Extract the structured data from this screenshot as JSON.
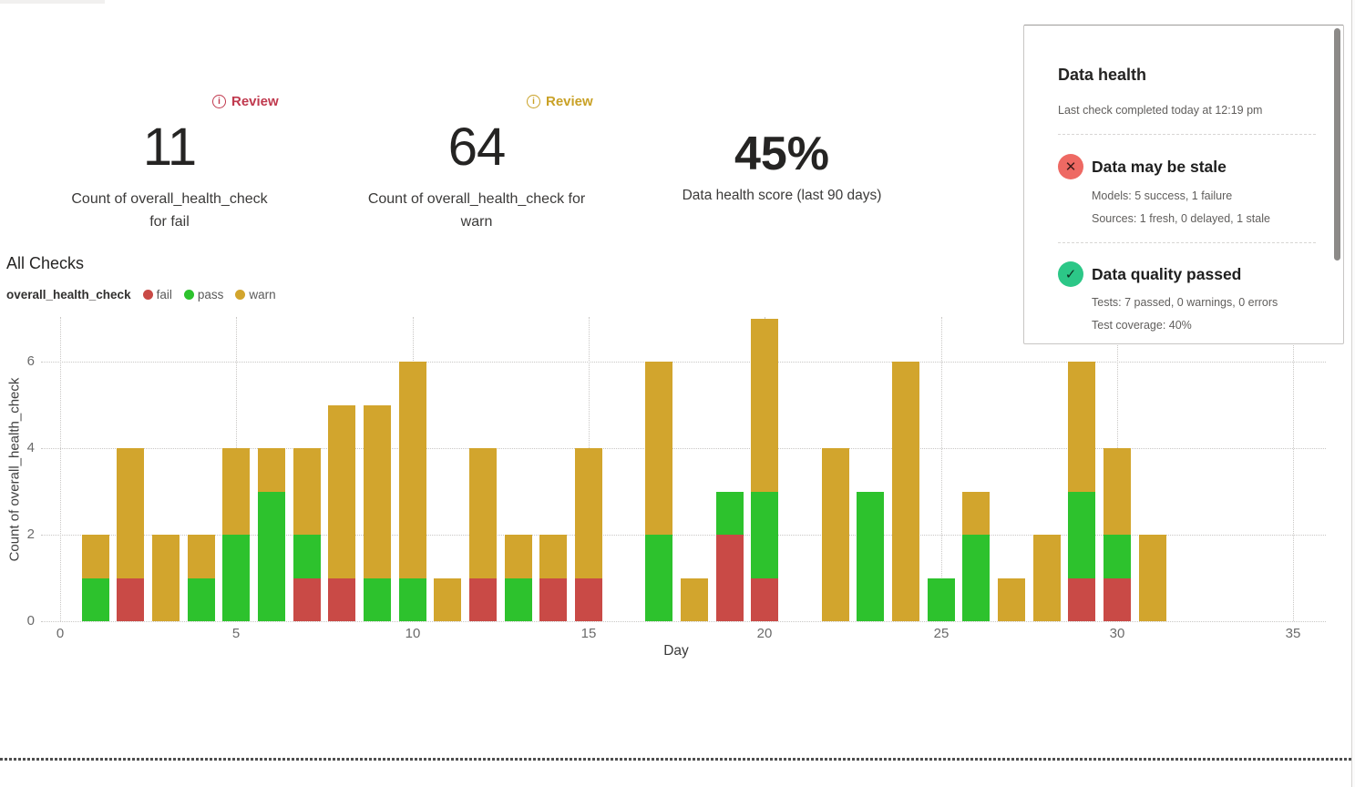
{
  "kpis": {
    "fail": {
      "review_label": "Review",
      "badge_color": "#c0394e",
      "value": "11",
      "label_line1": "Count of overall_health_check",
      "label_line2": "for fail"
    },
    "warn": {
      "review_label": "Review",
      "badge_color": "#c9a126",
      "value": "64",
      "label_line1": "Count of overall_health_check for",
      "label_line2": "warn"
    },
    "score": {
      "value": "45%",
      "label": "Data health score (last 90 days)"
    }
  },
  "section_title": "All Checks",
  "legend": {
    "title": "overall_health_check",
    "items": [
      {
        "label": "fail",
        "color": "#c94a46"
      },
      {
        "label": "pass",
        "color": "#2dc22d"
      },
      {
        "label": "warn",
        "color": "#d2a52d"
      }
    ]
  },
  "chart_data": {
    "type": "bar",
    "stacked": true,
    "title": "All Checks",
    "xlabel": "Day",
    "ylabel": "Count of overall_health_check",
    "x": [
      1,
      2,
      3,
      4,
      5,
      6,
      7,
      8,
      9,
      10,
      11,
      12,
      13,
      14,
      15,
      16,
      17,
      18,
      19,
      20,
      21,
      22,
      23,
      24,
      25,
      26,
      27,
      28,
      29,
      30,
      31
    ],
    "series": [
      {
        "name": "fail",
        "color": "#c94a46",
        "values": [
          0,
          1,
          0,
          0,
          0,
          0,
          1,
          1,
          0,
          0,
          0,
          1,
          0,
          1,
          1,
          0,
          0,
          0,
          2,
          1,
          0,
          0,
          0,
          0,
          0,
          0,
          0,
          0,
          1,
          1,
          0
        ]
      },
      {
        "name": "pass",
        "color": "#2dc22d",
        "values": [
          1,
          0,
          0,
          1,
          2,
          3,
          1,
          0,
          1,
          1,
          0,
          0,
          1,
          0,
          0,
          0,
          2,
          0,
          1,
          2,
          0,
          0,
          3,
          0,
          1,
          2,
          0,
          0,
          2,
          1,
          0
        ]
      },
      {
        "name": "warn",
        "color": "#d2a52d",
        "values": [
          1,
          3,
          2,
          1,
          2,
          1,
          2,
          4,
          4,
          5,
          1,
          3,
          1,
          1,
          3,
          0,
          4,
          1,
          0,
          4,
          0,
          4,
          0,
          6,
          0,
          1,
          1,
          2,
          3,
          2,
          2
        ]
      }
    ],
    "x_ticks": [
      0,
      5,
      10,
      15,
      20,
      25,
      30,
      35
    ],
    "y_ticks": [
      0,
      2,
      4,
      6
    ],
    "xlim": [
      0,
      36
    ],
    "ylim": [
      0,
      7.1
    ],
    "grid": true,
    "legend_position": "top-left"
  },
  "data_health_panel": {
    "title": "Data health",
    "subtitle": "Last check completed today at 12:19 pm",
    "sections": [
      {
        "icon": "x-circle-icon",
        "icon_glyph": "✕",
        "icon_color": "#ee6963",
        "title": "Data may be stale",
        "line1": "Models: 5 success, 1 failure",
        "line2": "Sources: 1 fresh, 0 delayed, 1 stale"
      },
      {
        "icon": "check-circle-icon",
        "icon_glyph": "✓",
        "icon_color": "#2cc787",
        "title": "Data quality passed",
        "line1": "Tests: 7 passed, 0 warnings, 0 errors",
        "line2": "Test coverage: 40%"
      }
    ]
  }
}
